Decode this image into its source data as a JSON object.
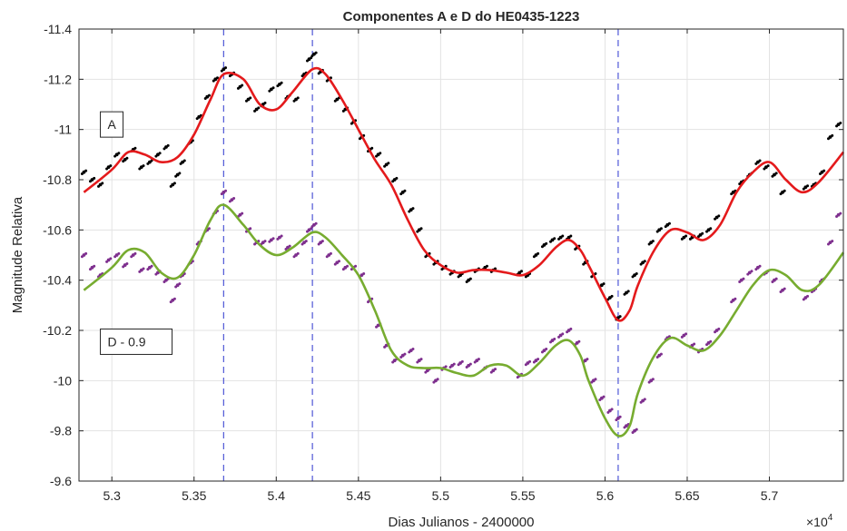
{
  "chart_data": {
    "type": "scatter",
    "title": "Componentes A e D do HE0435-1223",
    "xlabel": "Dias Julianos - 2400000",
    "ylabel": "Magnitude Relativa",
    "x_multiplier_label": "×10",
    "x_multiplier_exp": "4",
    "xlim": [
      5.28,
      5.745
    ],
    "ylim": [
      -9.6,
      -11.4
    ],
    "y_reversed": true,
    "grid": true,
    "x_ticks": [
      5.3,
      5.35,
      5.4,
      5.45,
      5.5,
      5.55,
      5.6,
      5.65,
      5.7
    ],
    "x_tick_labels": [
      "5.3",
      "5.35",
      "5.4",
      "5.45",
      "5.5",
      "5.55",
      "5.6",
      "5.65",
      "5.7"
    ],
    "y_ticks": [
      -11.4,
      -11.2,
      -11,
      -10.8,
      -10.6,
      -10.4,
      -10.2,
      -10,
      -9.8,
      -9.6
    ],
    "y_tick_labels": [
      "-11.4",
      "-11.2",
      "-11",
      "-10.8",
      "-10.6",
      "-10.4",
      "-10.2",
      "-10",
      "-9.8",
      "-9.6"
    ],
    "vertical_lines": [
      5.368,
      5.422,
      5.608
    ],
    "annotations": [
      {
        "text": "A",
        "x": 5.293,
        "y": -11.02
      },
      {
        "text": "D - 0.9",
        "x": 5.293,
        "y": -10.155
      }
    ],
    "series": [
      {
        "kind": "points",
        "color": "#000000",
        "x": [
          5.283,
          5.288,
          5.293,
          5.298,
          5.303,
          5.308,
          5.313,
          5.318,
          5.323,
          5.328,
          5.333,
          5.337,
          5.34,
          5.343,
          5.348,
          5.353,
          5.358,
          5.363,
          5.368,
          5.373,
          5.378,
          5.383,
          5.388,
          5.392,
          5.397,
          5.402,
          5.407,
          5.412,
          5.417,
          5.42,
          5.423,
          5.427,
          5.432,
          5.437,
          5.442,
          5.447,
          5.452,
          5.457,
          5.462,
          5.467,
          5.472,
          5.477,
          5.482,
          5.487,
          5.492,
          5.497,
          5.502,
          5.507,
          5.512,
          5.517,
          5.522,
          5.527,
          5.532,
          5.548,
          5.553,
          5.558,
          5.563,
          5.568,
          5.573,
          5.578,
          5.583,
          5.588,
          5.593,
          5.598,
          5.603,
          5.608,
          5.613,
          5.618,
          5.623,
          5.628,
          5.633,
          5.638,
          5.648,
          5.653,
          5.658,
          5.663,
          5.668,
          5.678,
          5.683,
          5.688,
          5.693,
          5.698,
          5.703,
          5.708,
          5.722,
          5.727,
          5.732,
          5.737,
          5.742
        ],
        "y": [
          -10.83,
          -10.8,
          -10.78,
          -10.85,
          -10.9,
          -10.88,
          -10.92,
          -10.85,
          -10.87,
          -10.9,
          -10.93,
          -10.78,
          -10.82,
          -10.87,
          -10.95,
          -11.05,
          -11.13,
          -11.2,
          -11.24,
          -11.22,
          -11.17,
          -11.12,
          -11.08,
          -11.1,
          -11.16,
          -11.18,
          -11.13,
          -11.12,
          -11.22,
          -11.28,
          -11.3,
          -11.23,
          -11.2,
          -11.12,
          -11.08,
          -11.03,
          -10.97,
          -10.92,
          -10.9,
          -10.86,
          -10.8,
          -10.75,
          -10.68,
          -10.6,
          -10.5,
          -10.47,
          -10.45,
          -10.43,
          -10.42,
          -10.4,
          -10.44,
          -10.45,
          -10.44,
          -10.43,
          -10.42,
          -10.5,
          -10.54,
          -10.56,
          -10.57,
          -10.57,
          -10.53,
          -10.47,
          -10.42,
          -10.38,
          -10.33,
          -10.25,
          -10.35,
          -10.42,
          -10.47,
          -10.55,
          -10.6,
          -10.62,
          -10.57,
          -10.57,
          -10.58,
          -10.6,
          -10.65,
          -10.75,
          -10.79,
          -10.82,
          -10.87,
          -10.85,
          -10.82,
          -10.75,
          -10.77,
          -10.78,
          -10.83,
          -10.97,
          -11.02
        ]
      },
      {
        "kind": "points",
        "color": "#7e2f8e",
        "x": [
          5.283,
          5.288,
          5.293,
          5.298,
          5.303,
          5.308,
          5.313,
          5.318,
          5.323,
          5.328,
          5.333,
          5.337,
          5.34,
          5.343,
          5.348,
          5.353,
          5.358,
          5.363,
          5.368,
          5.373,
          5.378,
          5.383,
          5.388,
          5.392,
          5.397,
          5.402,
          5.407,
          5.412,
          5.417,
          5.42,
          5.423,
          5.427,
          5.432,
          5.437,
          5.442,
          5.447,
          5.452,
          5.457,
          5.462,
          5.467,
          5.472,
          5.477,
          5.482,
          5.487,
          5.492,
          5.497,
          5.502,
          5.507,
          5.512,
          5.517,
          5.522,
          5.527,
          5.532,
          5.548,
          5.553,
          5.558,
          5.563,
          5.568,
          5.573,
          5.578,
          5.583,
          5.588,
          5.593,
          5.598,
          5.603,
          5.608,
          5.613,
          5.618,
          5.623,
          5.628,
          5.633,
          5.638,
          5.648,
          5.653,
          5.658,
          5.663,
          5.668,
          5.678,
          5.683,
          5.688,
          5.693,
          5.698,
          5.703,
          5.708,
          5.722,
          5.727,
          5.732,
          5.737,
          5.742
        ],
        "y": [
          -10.5,
          -10.45,
          -10.42,
          -10.48,
          -10.5,
          -10.46,
          -10.5,
          -10.44,
          -10.45,
          -10.43,
          -10.4,
          -10.32,
          -10.38,
          -10.42,
          -10.47,
          -10.55,
          -10.6,
          -10.67,
          -10.75,
          -10.72,
          -10.66,
          -10.6,
          -10.55,
          -10.55,
          -10.56,
          -10.57,
          -10.53,
          -10.5,
          -10.55,
          -10.6,
          -10.62,
          -10.55,
          -10.5,
          -10.47,
          -10.45,
          -10.45,
          -10.42,
          -10.32,
          -10.22,
          -10.14,
          -10.08,
          -10.1,
          -10.12,
          -10.08,
          -10.04,
          -10.0,
          -10.05,
          -10.06,
          -10.07,
          -10.06,
          -10.08,
          -10.05,
          -10.04,
          -10.02,
          -10.07,
          -10.08,
          -10.12,
          -10.16,
          -10.18,
          -10.2,
          -10.15,
          -10.08,
          -10.0,
          -9.93,
          -9.88,
          -9.85,
          -9.82,
          -9.8,
          -9.92,
          -10.0,
          -10.1,
          -10.17,
          -10.18,
          -10.14,
          -10.12,
          -10.15,
          -10.2,
          -10.32,
          -10.4,
          -10.43,
          -10.45,
          -10.43,
          -10.4,
          -10.36,
          -10.33,
          -10.36,
          -10.4,
          -10.55,
          -10.66
        ]
      },
      {
        "kind": "line",
        "color": "#e41a1c",
        "x": [
          5.283,
          5.3,
          5.31,
          5.32,
          5.33,
          5.34,
          5.35,
          5.36,
          5.368,
          5.38,
          5.39,
          5.4,
          5.41,
          5.422,
          5.43,
          5.44,
          5.45,
          5.46,
          5.47,
          5.48,
          5.49,
          5.5,
          5.51,
          5.52,
          5.53,
          5.54,
          5.55,
          5.56,
          5.57,
          5.578,
          5.585,
          5.59,
          5.6,
          5.608,
          5.615,
          5.62,
          5.63,
          5.64,
          5.65,
          5.66,
          5.67,
          5.68,
          5.69,
          5.7,
          5.71,
          5.72,
          5.73,
          5.745
        ],
        "y": [
          -10.75,
          -10.84,
          -10.91,
          -10.9,
          -10.87,
          -10.89,
          -10.98,
          -11.12,
          -11.22,
          -11.2,
          -11.1,
          -11.08,
          -11.15,
          -11.24,
          -11.22,
          -11.12,
          -11.0,
          -10.88,
          -10.78,
          -10.64,
          -10.52,
          -10.46,
          -10.43,
          -10.44,
          -10.44,
          -10.43,
          -10.42,
          -10.46,
          -10.53,
          -10.56,
          -10.52,
          -10.46,
          -10.33,
          -10.24,
          -10.28,
          -10.38,
          -10.52,
          -10.6,
          -10.59,
          -10.56,
          -10.62,
          -10.75,
          -10.83,
          -10.87,
          -10.8,
          -10.75,
          -10.79,
          -10.91
        ]
      },
      {
        "kind": "line",
        "color": "#77ac30",
        "x": [
          5.283,
          5.3,
          5.31,
          5.32,
          5.33,
          5.34,
          5.35,
          5.36,
          5.368,
          5.38,
          5.39,
          5.4,
          5.41,
          5.422,
          5.43,
          5.44,
          5.45,
          5.46,
          5.47,
          5.48,
          5.49,
          5.5,
          5.51,
          5.52,
          5.53,
          5.54,
          5.55,
          5.56,
          5.57,
          5.578,
          5.585,
          5.59,
          5.6,
          5.608,
          5.615,
          5.62,
          5.63,
          5.64,
          5.65,
          5.66,
          5.67,
          5.68,
          5.69,
          5.7,
          5.71,
          5.72,
          5.73,
          5.745
        ],
        "y": [
          -10.36,
          -10.45,
          -10.52,
          -10.51,
          -10.43,
          -10.41,
          -10.5,
          -10.64,
          -10.7,
          -10.62,
          -10.54,
          -10.5,
          -10.53,
          -10.59,
          -10.57,
          -10.5,
          -10.42,
          -10.28,
          -10.12,
          -10.06,
          -10.05,
          -10.05,
          -10.03,
          -10.02,
          -10.06,
          -10.06,
          -10.02,
          -10.07,
          -10.14,
          -10.16,
          -10.1,
          -10.0,
          -9.85,
          -9.78,
          -9.82,
          -9.95,
          -10.1,
          -10.17,
          -10.14,
          -10.12,
          -10.18,
          -10.28,
          -10.38,
          -10.44,
          -10.42,
          -10.36,
          -10.38,
          -10.51
        ]
      }
    ]
  }
}
